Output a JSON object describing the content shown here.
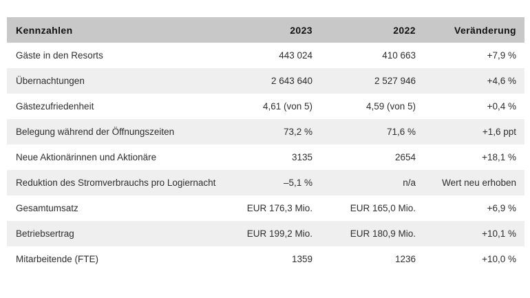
{
  "chart_data": {
    "type": "table",
    "title": "Kennzahlen",
    "columns": [
      "Kennzahlen",
      "2023",
      "2022",
      "Veränderung"
    ],
    "rows": [
      {
        "label": "Gäste in den Resorts",
        "y2023": "443 024",
        "y2022": "410 663",
        "change": "+7,9 %"
      },
      {
        "label": "Übernachtungen",
        "y2023": "2 643 640",
        "y2022": "2 527 946",
        "change": "+4,6 %"
      },
      {
        "label": "Gästezufriedenheit",
        "y2023": "4,61 (von 5)",
        "y2022": "4,59 (von 5)",
        "change": "+0,4 %"
      },
      {
        "label": "Belegung während der Öffnungszeiten",
        "y2023": "73,2 %",
        "y2022": "71,6 %",
        "change": "+1,6 ppt"
      },
      {
        "label": "Neue Aktionärinnen und Aktionäre",
        "y2023": "3135",
        "y2022": "2654",
        "change": "+18,1 %"
      },
      {
        "label": "Reduktion des Stromverbrauchs pro Logiernacht",
        "y2023": "–5,1 %",
        "y2022": "n/a",
        "change": "Wert neu erhoben"
      },
      {
        "label": "Gesamtumsatz",
        "y2023": "EUR 176,3 Mio.",
        "y2022": "EUR 165,0 Mio.",
        "change": "+6,9 %"
      },
      {
        "label": "Betriebsertrag",
        "y2023": "EUR 199,2 Mio.",
        "y2022": "EUR 180,9 Mio.",
        "change": "+10,1 %"
      },
      {
        "label": "Mitarbeitende (FTE)",
        "y2023": "1359",
        "y2022": "1236",
        "change": "+10,0 %"
      }
    ],
    "layout_hints": {
      "striped": true,
      "numeric_columns_right_aligned": true
    },
    "colors": {
      "header_bg": "#c8c8c8",
      "row_bg": "#ffffff",
      "row_alt_bg": "#efefef",
      "header_text": "#111111",
      "body_text": "#2d2d2d",
      "page_bg": "#ffffff"
    }
  }
}
